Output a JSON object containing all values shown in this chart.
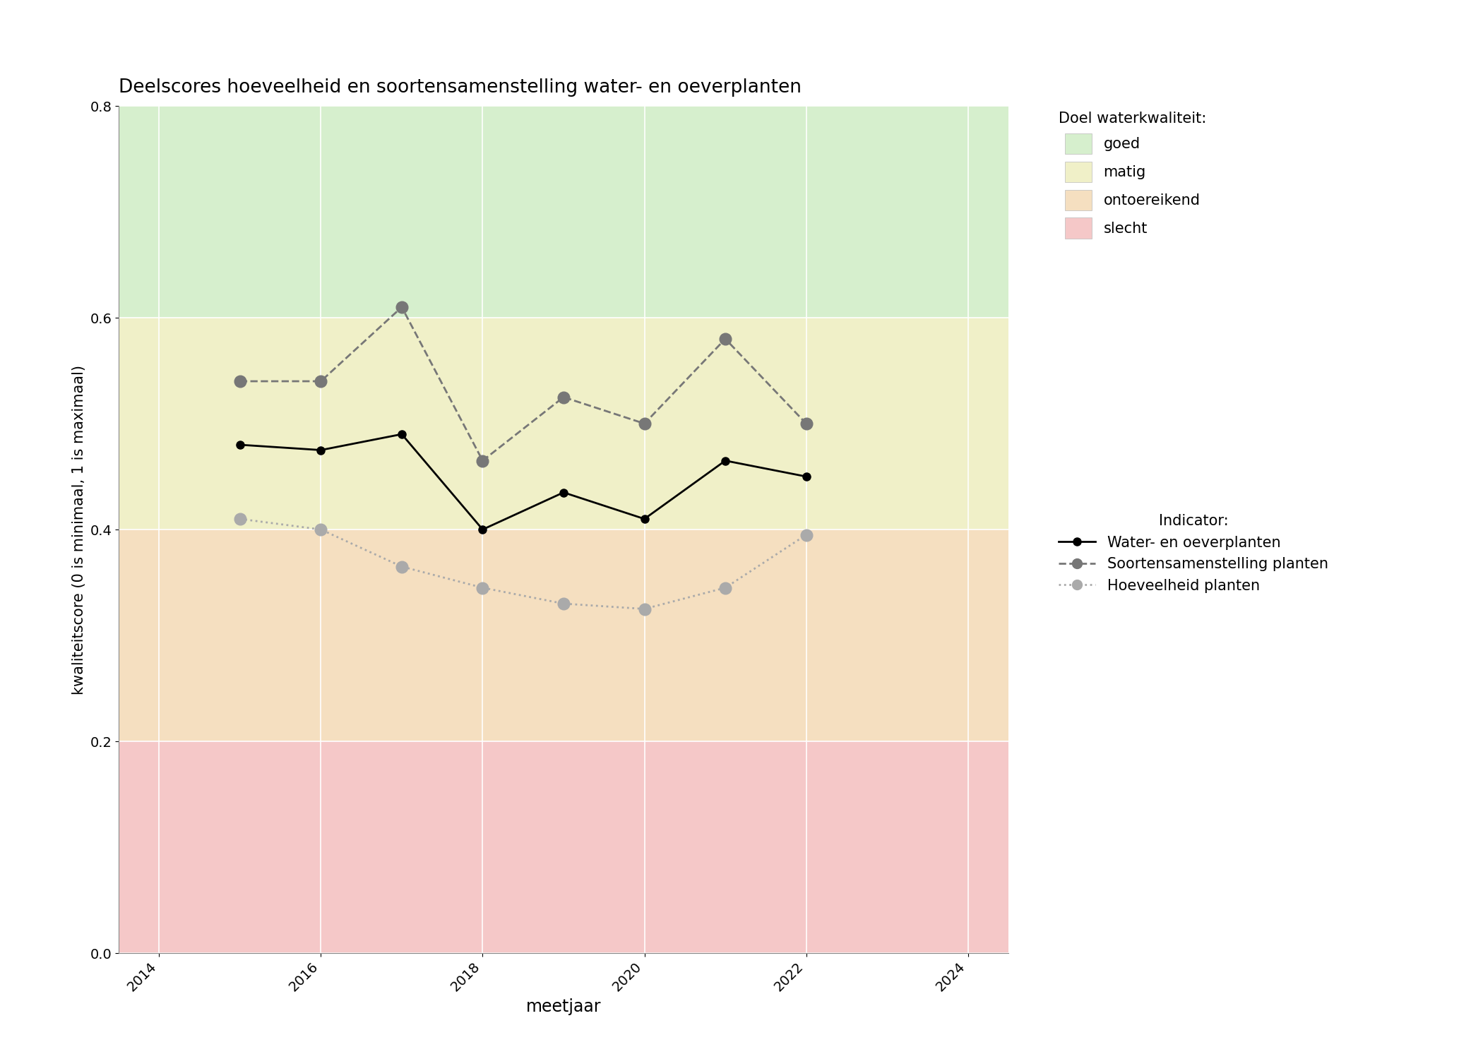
{
  "title": "Deelscores hoeveelheid en soortensamenstelling water- en oeverplanten",
  "xlabel": "meetjaar",
  "ylabel": "kwaliteitscore (0 is minimaal, 1 is maximaal)",
  "xlim": [
    2013.5,
    2024.5
  ],
  "ylim": [
    0.0,
    0.8
  ],
  "xticks": [
    2014,
    2016,
    2018,
    2020,
    2022,
    2024
  ],
  "yticks": [
    0.0,
    0.2,
    0.4,
    0.6,
    0.8
  ],
  "bg_colors": {
    "goed": {
      "color": "#d6efcd",
      "ymin": 0.6,
      "ymax": 0.8
    },
    "matig": {
      "color": "#f0f0c8",
      "ymin": 0.4,
      "ymax": 0.6
    },
    "ontoereikend": {
      "color": "#f5dfc0",
      "ymin": 0.2,
      "ymax": 0.4
    },
    "slecht": {
      "color": "#f5c8c8",
      "ymin": 0.0,
      "ymax": 0.2
    }
  },
  "water_en_oeverplanten": {
    "years": [
      2015,
      2016,
      2017,
      2018,
      2019,
      2020,
      2021,
      2022
    ],
    "values": [
      0.48,
      0.475,
      0.49,
      0.4,
      0.435,
      0.41,
      0.465,
      0.45
    ],
    "color": "#000000",
    "linestyle": "solid",
    "marker": "o",
    "markersize": 8,
    "linewidth": 2,
    "label": "Water- en oeverplanten"
  },
  "soortensamenstelling": {
    "years": [
      2015,
      2016,
      2017,
      2018,
      2019,
      2020,
      2021,
      2022
    ],
    "values": [
      0.54,
      0.54,
      0.61,
      0.465,
      0.525,
      0.5,
      0.58,
      0.5
    ],
    "color": "#777777",
    "linestyle": "dashed",
    "marker": "o",
    "markersize": 12,
    "linewidth": 2,
    "label": "Soortensamenstelling planten"
  },
  "hoeveelheid": {
    "years": [
      2015,
      2016,
      2017,
      2018,
      2019,
      2020,
      2021,
      2022
    ],
    "values": [
      0.41,
      0.4,
      0.365,
      0.345,
      0.33,
      0.325,
      0.345,
      0.395
    ],
    "color": "#aaaaaa",
    "linestyle": "dotted",
    "marker": "o",
    "markersize": 12,
    "linewidth": 2,
    "label": "Hoeveelheid planten"
  },
  "legend_doel_title": "Doel waterkwaliteit:",
  "legend_indicator_title": "Indicator:",
  "legend_items": [
    {
      "label": "goed",
      "color": "#d6efcd"
    },
    {
      "label": "matig",
      "color": "#f0f0c8"
    },
    {
      "label": "ontoereikend",
      "color": "#f5dfc0"
    },
    {
      "label": "slecht",
      "color": "#f5c8c8"
    }
  ]
}
